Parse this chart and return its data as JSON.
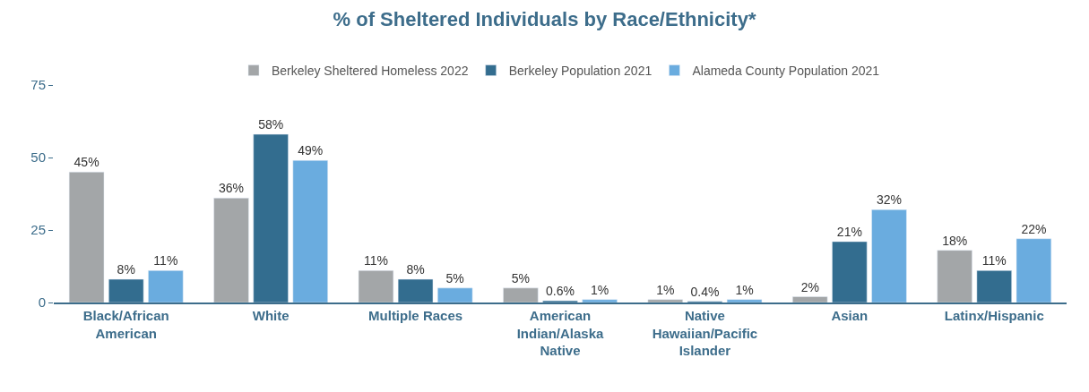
{
  "chart_data": {
    "type": "bar",
    "title": "% of Sheltered Individuals by Race/Ethnicity*",
    "categories": [
      "Black/African American",
      "White",
      "Multiple Races",
      "American Indian/Alaska Native",
      "Native Hawaiian/Pacific Islander",
      "Asian",
      "Latinx/Hispanic"
    ],
    "series": [
      {
        "name": "Berkeley Sheltered Homeless 2022",
        "color": "#a3a6a8",
        "values": [
          45,
          36,
          11,
          5,
          1,
          2,
          18
        ],
        "value_labels": [
          "45%",
          "36%",
          "11%",
          "5%",
          "1%",
          "2%",
          "18%"
        ]
      },
      {
        "name": "Berkeley Population 2021",
        "color": "#336d8f",
        "values": [
          8,
          58,
          8,
          0.6,
          0.4,
          21,
          11
        ],
        "value_labels": [
          "8%",
          "58%",
          "8%",
          "0.6%",
          "0.4%",
          "21%",
          "11%"
        ]
      },
      {
        "name": "Alameda County Population 2021",
        "color": "#6aacdf",
        "values": [
          11,
          49,
          5,
          1,
          1,
          32,
          22
        ],
        "value_labels": [
          "11%",
          "49%",
          "5%",
          "1%",
          "1%",
          "32%",
          "22%"
        ]
      }
    ],
    "ylim": [
      0,
      75
    ],
    "yticks": [
      0,
      25,
      50,
      75
    ],
    "legend": "top"
  }
}
